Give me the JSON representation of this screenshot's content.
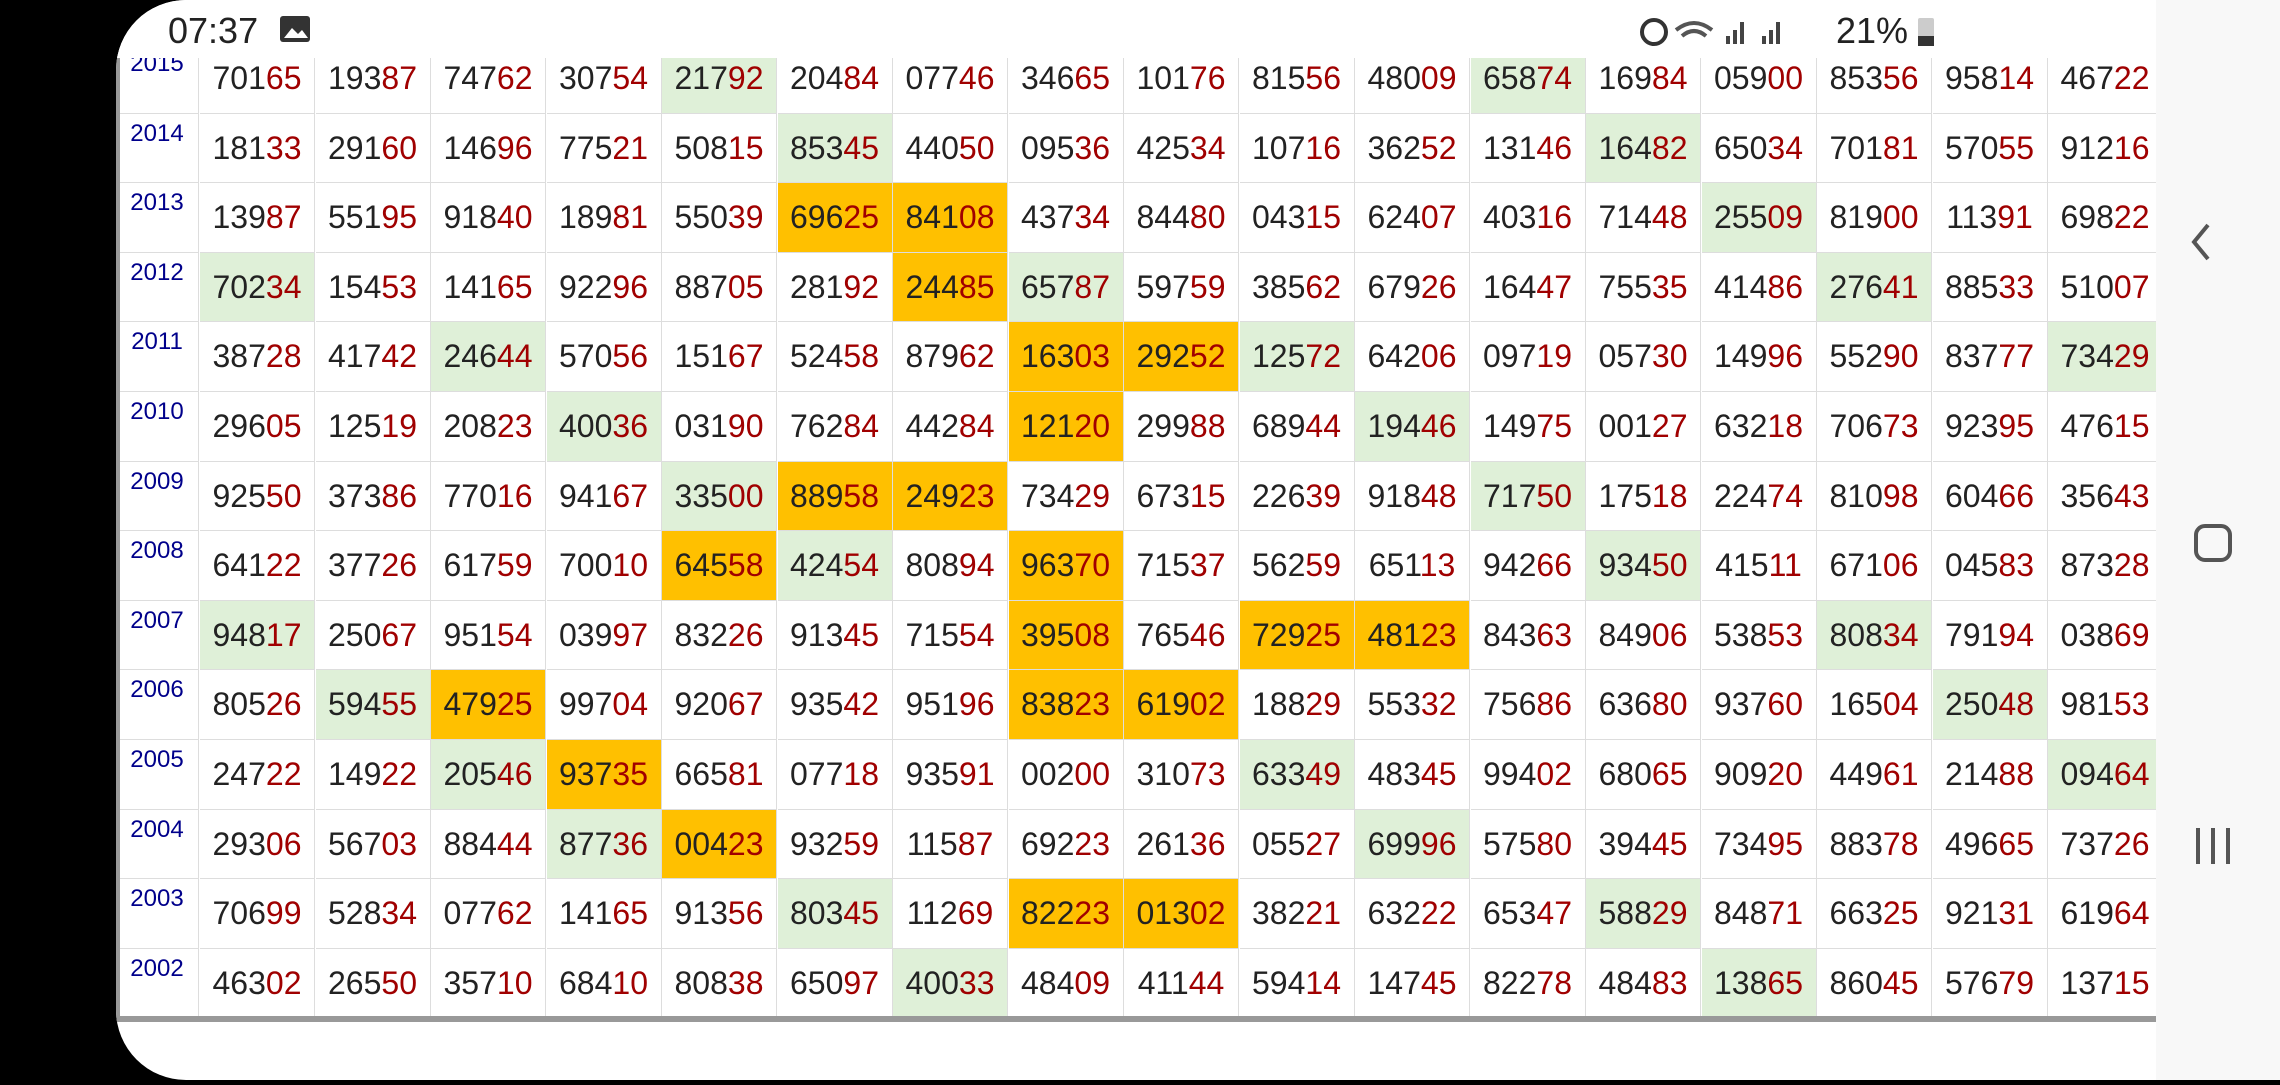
{
  "status_bar": {
    "time": "07:37",
    "battery": "21%"
  },
  "highlight": {
    "green": "#dff0d8",
    "orange": "#ffc000"
  },
  "table": {
    "rows": [
      {
        "year": "2015",
        "cells": [
          "70165",
          "19387",
          "74762",
          "30754",
          "21792",
          "20484",
          "07746",
          "34665",
          "10176",
          "81556",
          "48009",
          "65874",
          "16984",
          "05900",
          "85356",
          "95814",
          "46722"
        ],
        "fills": [
          null,
          null,
          null,
          null,
          "green",
          null,
          null,
          null,
          null,
          null,
          null,
          "green",
          null,
          null,
          null,
          null,
          null
        ]
      },
      {
        "year": "2014",
        "cells": [
          "18133",
          "29160",
          "14696",
          "77521",
          "50815",
          "85345",
          "44050",
          "09536",
          "42534",
          "10716",
          "36252",
          "13146",
          "16482",
          "65034",
          "70181",
          "57055",
          "91216"
        ],
        "fills": [
          null,
          null,
          null,
          null,
          null,
          "green",
          null,
          null,
          null,
          null,
          null,
          null,
          "green",
          null,
          null,
          null,
          null
        ]
      },
      {
        "year": "2013",
        "cells": [
          "13987",
          "55195",
          "91840",
          "18981",
          "55039",
          "69625",
          "84108",
          "43734",
          "84480",
          "04315",
          "62407",
          "40316",
          "71448",
          "25509",
          "81900",
          "11391",
          "69822"
        ],
        "fills": [
          null,
          null,
          null,
          null,
          null,
          "orange",
          "orange",
          null,
          null,
          null,
          null,
          null,
          null,
          "green",
          null,
          null,
          null
        ]
      },
      {
        "year": "2012",
        "cells": [
          "70234",
          "15453",
          "14165",
          "92296",
          "88705",
          "28192",
          "24485",
          "65787",
          "59759",
          "38562",
          "67926",
          "16447",
          "75535",
          "41486",
          "27641",
          "88533",
          "51007"
        ],
        "fills": [
          "green",
          null,
          null,
          null,
          null,
          null,
          "orange",
          "green",
          null,
          null,
          null,
          null,
          null,
          null,
          "green",
          null,
          null
        ]
      },
      {
        "year": "2011",
        "cells": [
          "38728",
          "41742",
          "24644",
          "57056",
          "15167",
          "52458",
          "87962",
          "16303",
          "29252",
          "12572",
          "64206",
          "09719",
          "05730",
          "14996",
          "55290",
          "83777",
          "73429"
        ],
        "fills": [
          null,
          null,
          "green",
          null,
          null,
          null,
          null,
          "orange",
          "orange",
          "green",
          null,
          null,
          null,
          null,
          null,
          null,
          "green"
        ]
      },
      {
        "year": "2010",
        "cells": [
          "29605",
          "12519",
          "20823",
          "40036",
          "03190",
          "76284",
          "44284",
          "12120",
          "29988",
          "68944",
          "19446",
          "14975",
          "00127",
          "63218",
          "70673",
          "92395",
          "47615"
        ],
        "fills": [
          null,
          null,
          null,
          "green",
          null,
          null,
          null,
          "orange",
          null,
          null,
          "green",
          null,
          null,
          null,
          null,
          null,
          null
        ]
      },
      {
        "year": "2009",
        "cells": [
          "92550",
          "37386",
          "77016",
          "94167",
          "33500",
          "88958",
          "24923",
          "73429",
          "67315",
          "22639",
          "91848",
          "71750",
          "17518",
          "22474",
          "81098",
          "60466",
          "35643"
        ],
        "fills": [
          null,
          null,
          null,
          null,
          "green",
          "orange",
          "orange",
          null,
          null,
          null,
          null,
          "green",
          null,
          null,
          null,
          null,
          null
        ]
      },
      {
        "year": "2008",
        "cells": [
          "64122",
          "37726",
          "61759",
          "70010",
          "64558",
          "42454",
          "80894",
          "96370",
          "71537",
          "56259",
          "65113",
          "94266",
          "93450",
          "41511",
          "67106",
          "04583",
          "87328"
        ],
        "fills": [
          null,
          null,
          null,
          null,
          "orange",
          "green",
          null,
          "orange",
          null,
          null,
          null,
          null,
          "green",
          null,
          null,
          null,
          null
        ]
      },
      {
        "year": "2007",
        "cells": [
          "94817",
          "25067",
          "95154",
          "03997",
          "83226",
          "91345",
          "71554",
          "39508",
          "76546",
          "72925",
          "48123",
          "84363",
          "84906",
          "53853",
          "80834",
          "79194",
          "03869"
        ],
        "fills": [
          "green",
          null,
          null,
          null,
          null,
          null,
          null,
          "orange",
          null,
          "orange",
          "orange",
          null,
          null,
          null,
          "green",
          null,
          null
        ]
      },
      {
        "year": "2006",
        "cells": [
          "80526",
          "59455",
          "47925",
          "99704",
          "92067",
          "93542",
          "95196",
          "83823",
          "61902",
          "18829",
          "55332",
          "75686",
          "63680",
          "93760",
          "16504",
          "25048",
          "98153"
        ],
        "fills": [
          null,
          "green",
          "orange",
          null,
          null,
          null,
          null,
          "orange",
          "orange",
          null,
          null,
          null,
          null,
          null,
          null,
          "green",
          null
        ]
      },
      {
        "year": "2005",
        "cells": [
          "24722",
          "14922",
          "20546",
          "93735",
          "66581",
          "07718",
          "93591",
          "00200",
          "31073",
          "63349",
          "48345",
          "99402",
          "68065",
          "90920",
          "44961",
          "21488",
          "09464"
        ],
        "fills": [
          null,
          null,
          "green",
          "orange",
          null,
          null,
          null,
          null,
          null,
          "green",
          null,
          null,
          null,
          null,
          null,
          null,
          "green"
        ]
      },
      {
        "year": "2004",
        "cells": [
          "29306",
          "56703",
          "88444",
          "87736",
          "00423",
          "93259",
          "11587",
          "69223",
          "26136",
          "05527",
          "69996",
          "57580",
          "39445",
          "73495",
          "88378",
          "49665",
          "73726"
        ],
        "fills": [
          null,
          null,
          null,
          "green",
          "orange",
          null,
          null,
          null,
          null,
          null,
          "green",
          null,
          null,
          null,
          null,
          null,
          null
        ]
      },
      {
        "year": "2003",
        "cells": [
          "70699",
          "52834",
          "07762",
          "14165",
          "91356",
          "80345",
          "11269",
          "82223",
          "01302",
          "38221",
          "63222",
          "65347",
          "58829",
          "84871",
          "66325",
          "92131",
          "61964"
        ],
        "fills": [
          null,
          null,
          null,
          null,
          null,
          "green",
          null,
          "orange",
          "orange",
          null,
          null,
          null,
          "green",
          null,
          null,
          null,
          null
        ]
      },
      {
        "year": "2002",
        "cells": [
          "46302",
          "26550",
          "35710",
          "68410",
          "80838",
          "65097",
          "40033",
          "48409",
          "41144",
          "59414",
          "14745",
          "82278",
          "48483",
          "13865",
          "86045",
          "57679",
          "13715"
        ],
        "fills": [
          null,
          null,
          null,
          null,
          null,
          null,
          "green",
          null,
          null,
          null,
          null,
          null,
          null,
          "green",
          null,
          null,
          null
        ]
      }
    ]
  }
}
